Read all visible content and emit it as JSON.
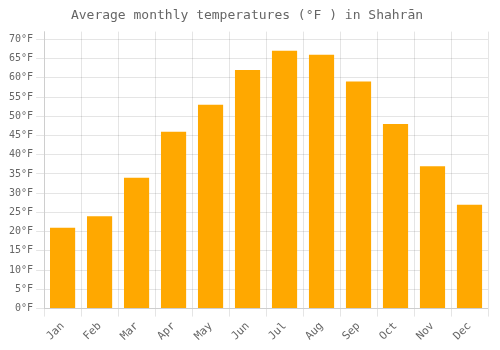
{
  "chart_data": {
    "type": "bar",
    "title": "Average monthly temperatures (°F ) in Shahrān",
    "categories": [
      "Jan",
      "Feb",
      "Mar",
      "Apr",
      "May",
      "Jun",
      "Jul",
      "Aug",
      "Sep",
      "Oct",
      "Nov",
      "Dec"
    ],
    "values": [
      21,
      24,
      34,
      46,
      53,
      62,
      67,
      66,
      59,
      48,
      37,
      27
    ],
    "color": "#FFA800",
    "ylim": [
      0,
      72
    ],
    "yticks": [
      {
        "value": 0,
        "label": "0°F"
      },
      {
        "value": 5,
        "label": "5°F"
      },
      {
        "value": 10,
        "label": "10°F"
      },
      {
        "value": 15,
        "label": "15°F"
      },
      {
        "value": 20,
        "label": "20°F"
      },
      {
        "value": 25,
        "label": "25°F"
      },
      {
        "value": 30,
        "label": "30°F"
      },
      {
        "value": 35,
        "label": "35°F"
      },
      {
        "value": 40,
        "label": "40°F"
      },
      {
        "value": 45,
        "label": "45°F"
      },
      {
        "value": 50,
        "label": "50°F"
      },
      {
        "value": 55,
        "label": "55°F"
      },
      {
        "value": 60,
        "label": "60°F"
      },
      {
        "value": 65,
        "label": "65°F"
      },
      {
        "value": 70,
        "label": "70°F"
      }
    ],
    "grid": true
  }
}
